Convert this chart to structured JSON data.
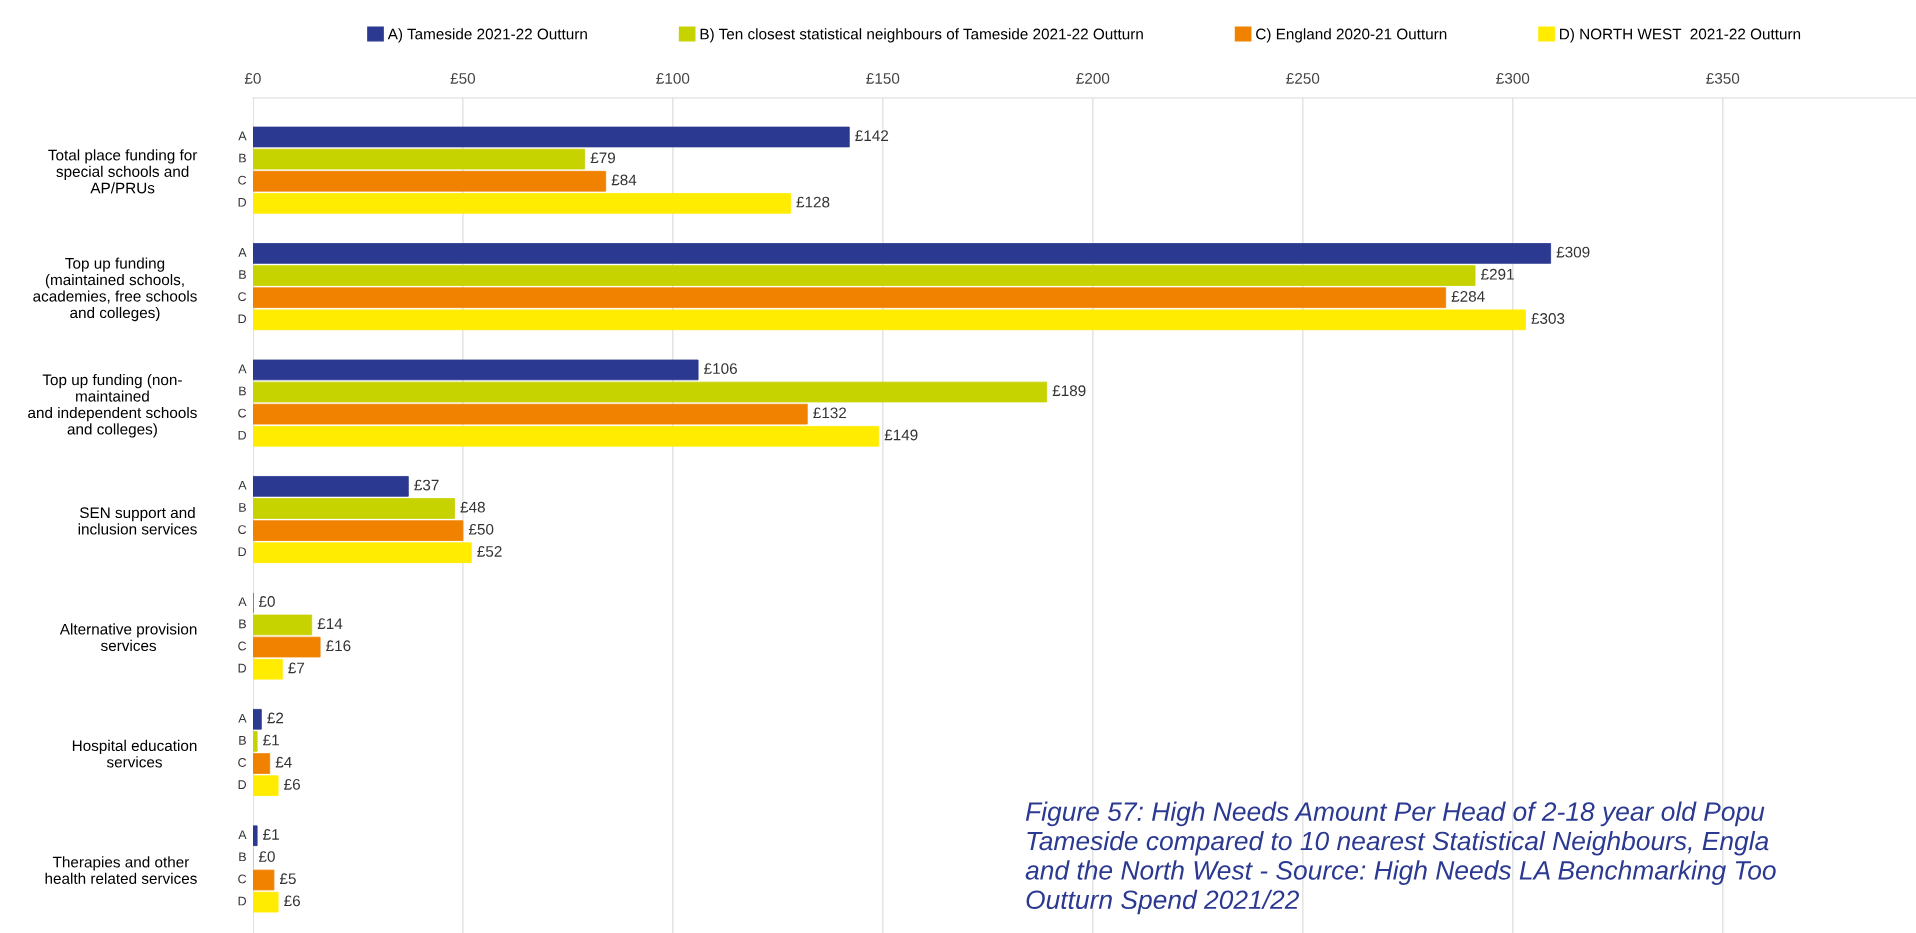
{
  "chart_data": {
    "type": "bar",
    "orientation": "horizontal",
    "categories": [
      "Total place funding for\nspecial schools and\nAP/PRUs",
      "Top up funding\n(maintained schools,\nacademies, free schools\nand colleges)",
      "Top up funding (non-\nmaintained\nand independent schools\nand colleges)",
      "SEN support and\ninclusion services",
      "Alternative provision\nservices",
      "Hospital education\nservices",
      "Therapies and other\nhealth related services"
    ],
    "series": [
      {
        "name": "A) Tameside 2021-22 Outturn",
        "color": "#2b3990",
        "values": [
          142,
          309,
          106,
          37,
          0,
          2,
          1
        ],
        "value_labels": [
          "£142",
          "£309",
          "£106",
          "£37",
          "£0",
          "£2",
          "£1"
        ]
      },
      {
        "name": "B) Ten closest statistical neighbours of Tameside 2021-22 Outturn",
        "color": "#c6d300",
        "values": [
          79,
          291,
          189,
          48,
          14,
          1,
          0
        ],
        "value_labels": [
          "£79",
          "£291",
          "£189",
          "£48",
          "£14",
          "£1",
          "£0"
        ]
      },
      {
        "name": "C) England 2020-21 Outturn",
        "color": "#f08200",
        "values": [
          84,
          284,
          132,
          50,
          16,
          4,
          5
        ],
        "value_labels": [
          "£84",
          "£284",
          "£132",
          "£50",
          "£16",
          "£4",
          "£5"
        ]
      },
      {
        "name": "D) NORTH WEST  2021-22 Outturn",
        "color": "#ffec00",
        "values": [
          128,
          303,
          149,
          52,
          7,
          6,
          6
        ],
        "value_labels": [
          "£128",
          "£303",
          "£149",
          "£52",
          "£7",
          "£6",
          "£6"
        ]
      }
    ],
    "xlim": [
      0,
      396
    ],
    "xticks": [
      {
        "value": 0,
        "label": "£0"
      },
      {
        "value": 50,
        "label": "£50"
      },
      {
        "value": 100,
        "label": "£100"
      },
      {
        "value": 150,
        "label": "£150"
      },
      {
        "value": 200,
        "label": "£200"
      },
      {
        "value": 250,
        "label": "£250"
      },
      {
        "value": 300,
        "label": "£300"
      },
      {
        "value": 350,
        "label": "£350"
      }
    ],
    "grid": "x",
    "legend": "top",
    "annotations": [
      "A",
      "B",
      "C",
      "D",
      "Figure 57: High Needs Amount Per Head of 2-18 year old Popu\nTameside compared to 10 nearest Statistical Neighbours, Engla\nand the North West - Source: High Needs LA Benchmarking Too\nOutturn Spend 2021/22"
    ]
  }
}
